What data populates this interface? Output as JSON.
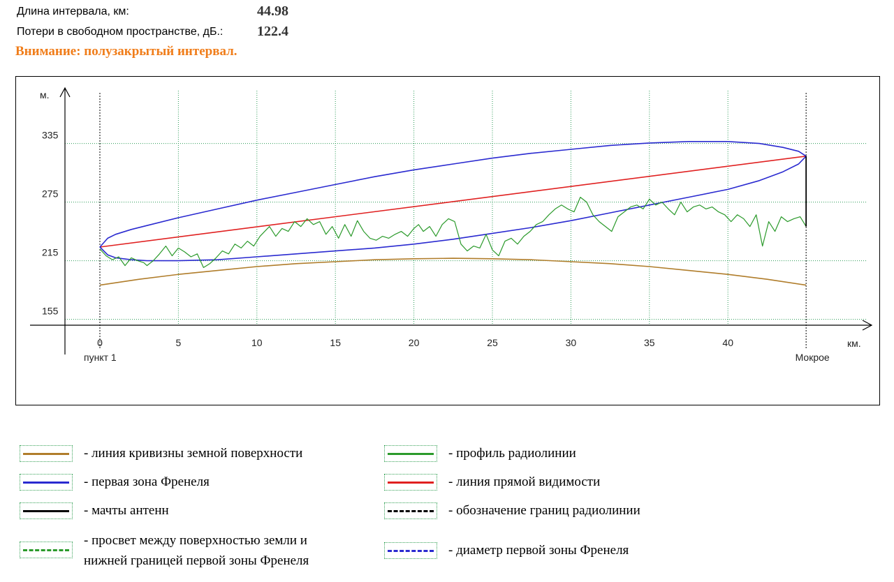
{
  "info": {
    "length_label": "Длина интервала, км:",
    "length_value": "44.98",
    "loss_label": "Потери в свободном пространстве, дБ.:",
    "loss_value": "122.4",
    "warning": "Внимание: полузакрытый интервал."
  },
  "chart_data": {
    "type": "line",
    "xlabel": "км.",
    "ylabel": "м.",
    "xlim": [
      0,
      45
    ],
    "ylim": [
      149,
      371
    ],
    "x_ticks": [
      0,
      5,
      10,
      15,
      20,
      25,
      30,
      35,
      40
    ],
    "y_ticks": [
      155,
      215,
      275,
      335
    ],
    "endpoint_labels": {
      "start": "пункт 1",
      "end": "Мокрое"
    },
    "interval_km": 44.98,
    "colors": {
      "earth": "#b07d2b",
      "profile": "#2b9a2b",
      "fresnel": "#2a2ad0",
      "los": "#e02020",
      "mast": "#000000",
      "grid": "#2a9a55"
    },
    "series": [
      {
        "key": "earth",
        "x": [
          0,
          2.5,
          5,
          7.5,
          10,
          12.5,
          15,
          17.5,
          20,
          22.5,
          25,
          27.5,
          30,
          32.5,
          35,
          37.5,
          40,
          42.5,
          44.98
        ],
        "values": [
          190,
          196,
          201,
          205,
          209,
          212,
          214,
          216,
          217,
          217.5,
          217,
          216,
          214,
          212,
          209,
          205,
          201,
          196,
          190
        ]
      },
      {
        "key": "los",
        "x": [
          0,
          44.98
        ],
        "values": [
          229,
          322
        ]
      },
      {
        "key": "fresnel_upper",
        "x": [
          0,
          0.5,
          1,
          2,
          3,
          5,
          7.5,
          10,
          12.5,
          15,
          17.5,
          20,
          22.5,
          25,
          27.5,
          30,
          32.5,
          35,
          37.5,
          40,
          42,
          43.5,
          44.5,
          44.98
        ],
        "values": [
          229,
          238,
          242,
          247,
          251,
          259,
          268,
          277,
          285,
          293,
          301,
          308,
          314,
          320,
          325,
          329,
          333,
          335.5,
          337,
          337,
          335,
          331,
          327,
          322
        ]
      },
      {
        "key": "fresnel_lower",
        "x": [
          0,
          0.5,
          1,
          2,
          3,
          5,
          7.5,
          10,
          12.5,
          15,
          17.5,
          20,
          22.5,
          25,
          27.5,
          30,
          32.5,
          35,
          37.5,
          40,
          42,
          43.5,
          44.5,
          44.98
        ],
        "values": [
          229,
          221,
          218,
          216,
          215,
          215,
          216,
          219,
          222,
          225,
          228,
          232,
          237,
          243,
          249,
          256,
          264,
          272,
          280,
          288,
          297,
          306,
          314,
          322
        ]
      },
      {
        "key": "profile",
        "x": [
          0,
          0.4,
          0.8,
          1.2,
          1.6,
          2.0,
          2.4,
          2.8,
          3.0,
          3.4,
          3.8,
          4.2,
          4.6,
          5.0,
          5.4,
          5.8,
          6.2,
          6.6,
          7.0,
          7.4,
          7.8,
          8.2,
          8.6,
          9.0,
          9.4,
          9.8,
          10.2,
          10.5,
          10.8,
          11.2,
          11.6,
          12.0,
          12.4,
          12.8,
          13.2,
          13.6,
          14.0,
          14.4,
          14.8,
          15.2,
          15.6,
          16.0,
          16.4,
          16.8,
          17.2,
          17.6,
          18.0,
          18.4,
          18.8,
          19.2,
          19.6,
          20.0,
          20.3,
          20.6,
          21.0,
          21.4,
          21.8,
          22.2,
          22.6,
          23.0,
          23.4,
          23.8,
          24.2,
          24.6,
          25.0,
          25.4,
          25.8,
          26.2,
          26.6,
          27.0,
          27.4,
          27.8,
          28.2,
          28.6,
          29.0,
          29.4,
          29.8,
          30.2,
          30.6,
          31.0,
          31.4,
          31.8,
          32.2,
          32.6,
          33.0,
          33.4,
          33.8,
          34.2,
          34.6,
          35.0,
          35.4,
          35.8,
          36.2,
          36.6,
          37.0,
          37.4,
          37.8,
          38.2,
          38.6,
          39.0,
          39.4,
          39.8,
          40.2,
          40.6,
          41.0,
          41.4,
          41.8,
          42.2,
          42.6,
          43.0,
          43.4,
          43.8,
          44.2,
          44.6,
          44.98
        ],
        "values": [
          227,
          220,
          216,
          219,
          210,
          218,
          215,
          213,
          210,
          215,
          222,
          230,
          220,
          228,
          224,
          219,
          222,
          208,
          212,
          218,
          225,
          222,
          232,
          228,
          235,
          230,
          240,
          245,
          250,
          240,
          248,
          245,
          255,
          250,
          258,
          252,
          255,
          242,
          250,
          238,
          252,
          240,
          256,
          245,
          238,
          236,
          240,
          238,
          242,
          245,
          240,
          248,
          252,
          245,
          250,
          240,
          252,
          258,
          255,
          232,
          225,
          230,
          228,
          242,
          226,
          220,
          235,
          238,
          232,
          240,
          245,
          252,
          255,
          262,
          268,
          272,
          268,
          265,
          280,
          275,
          262,
          255,
          250,
          245,
          260,
          265,
          270,
          272,
          268,
          278,
          272,
          275,
          268,
          262,
          275,
          265,
          270,
          272,
          268,
          270,
          265,
          262,
          255,
          262,
          258,
          250,
          262,
          230,
          255,
          245,
          260,
          255,
          258,
          260,
          250
        ]
      }
    ]
  },
  "legend": [
    {
      "key": "earth",
      "label": "- линия кривизны земной поверхности",
      "color": "#b07d2b",
      "style": "solid"
    },
    {
      "key": "profile",
      "label": "- профиль радиолинии",
      "color": "#2b9a2b",
      "style": "solid"
    },
    {
      "key": "fresnel",
      "label": "- первая зона Френеля",
      "color": "#2a2ad0",
      "style": "solid"
    },
    {
      "key": "los",
      "label": "- линия прямой видимости",
      "color": "#e02020",
      "style": "solid"
    },
    {
      "key": "mast",
      "label": "- мачты антенн",
      "color": "#000000",
      "style": "solid"
    },
    {
      "key": "bounds",
      "label": "- обозначение границ радиолинии",
      "color": "#000000",
      "style": "dashed"
    },
    {
      "key": "clearance",
      "label_line1": "- просвет между поверхностью земли и",
      "label_line2": "нижней границей первой зоны Френеля",
      "color": "#2b9a2b",
      "style": "dashed"
    },
    {
      "key": "fresnel_diameter",
      "label": "- диаметр первой зоны Френеля",
      "color": "#2a2ad0",
      "style": "dashed"
    }
  ]
}
